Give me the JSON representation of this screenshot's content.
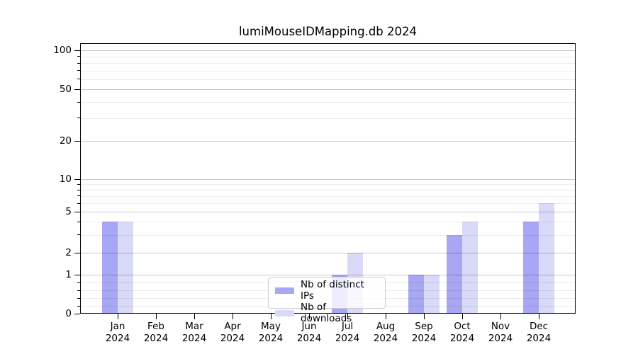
{
  "chart_data": {
    "type": "bar",
    "title": "lumiMouseIDMapping.db 2024",
    "categories": [
      "Jan",
      "Feb",
      "Mar",
      "Apr",
      "May",
      "Jun",
      "Jul",
      "Aug",
      "Sep",
      "Oct",
      "Nov",
      "Dec"
    ],
    "year": "2024",
    "series": [
      {
        "name": "Nb of distinct IPs",
        "color": "#a7a7f3",
        "values": [
          4,
          0,
          0,
          0,
          0,
          0,
          1,
          0,
          1,
          3,
          0,
          4
        ]
      },
      {
        "name": "Nb of downloads",
        "color": "#d9d9f8",
        "values": [
          4,
          0,
          0,
          0,
          0,
          0,
          2,
          0,
          1,
          4,
          0,
          6
        ]
      }
    ],
    "yscale": "symlog",
    "yticks": [
      0,
      1,
      2,
      5,
      10,
      20,
      50,
      100
    ],
    "y_minor_ticks": [
      0.2,
      0.4,
      0.6,
      0.8,
      3,
      4,
      6,
      7,
      8,
      9,
      30,
      40,
      60,
      70,
      80,
      90
    ],
    "ylim": [
      0,
      120
    ],
    "xlabel": "",
    "ylabel": "",
    "grid": "both",
    "legend_position": "lower center"
  },
  "colors": {
    "grid_major": "rgba(0,0,0,0.22)",
    "grid_minor": "rgba(0,0,0,0.08)",
    "axis": "#000000",
    "background": "#ffffff"
  }
}
